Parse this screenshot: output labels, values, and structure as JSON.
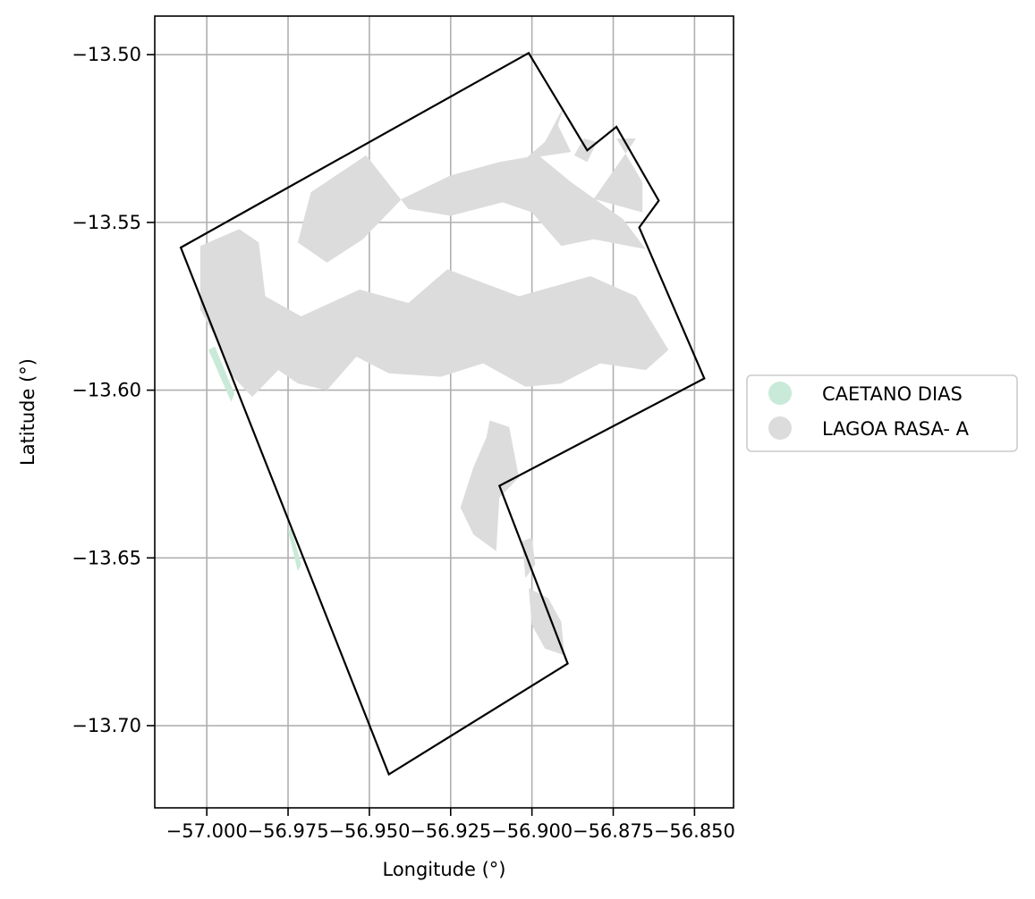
{
  "chart_data": {
    "type": "map",
    "xlabel": "Longitude (°)",
    "ylabel": "Latitude (°)",
    "xlim": [
      -57.016,
      -56.838
    ],
    "ylim": [
      -13.7245,
      -13.4885
    ],
    "grid": true,
    "x_ticks": [
      {
        "value": -57.0,
        "label": "−57.000"
      },
      {
        "value": -56.975,
        "label": "−56.975"
      },
      {
        "value": -56.95,
        "label": "−56.950"
      },
      {
        "value": -56.925,
        "label": "−56.925"
      },
      {
        "value": -56.9,
        "label": "−56.900"
      },
      {
        "value": -56.875,
        "label": "−56.875"
      },
      {
        "value": -56.85,
        "label": "−56.850"
      }
    ],
    "y_ticks": [
      {
        "value": -13.5,
        "label": "−13.50"
      },
      {
        "value": -13.55,
        "label": "−13.55"
      },
      {
        "value": -13.6,
        "label": "−13.60"
      },
      {
        "value": -13.65,
        "label": "−13.65"
      },
      {
        "value": -13.7,
        "label": "−13.70"
      }
    ],
    "boundary": [
      [
        -57.008,
        -13.5575
      ],
      [
        -56.901,
        -13.4995
      ],
      [
        -56.883,
        -13.5285
      ],
      [
        -56.874,
        -13.5215
      ],
      [
        -56.861,
        -13.5435
      ],
      [
        -56.867,
        -13.5515
      ],
      [
        -56.847,
        -13.5965
      ],
      [
        -56.91,
        -13.6285
      ],
      [
        -56.889,
        -13.6815
      ],
      [
        -56.944,
        -13.7145
      ],
      [
        -57.008,
        -13.5575
      ]
    ],
    "regions": [
      {
        "name": "LAGOA RASA- A",
        "color": "#dcdcdc",
        "polygons": [
          [
            [
              -57.002,
              -13.557
            ],
            [
              -56.99,
              -13.552
            ],
            [
              -56.984,
              -13.556
            ],
            [
              -56.982,
              -13.572
            ],
            [
              -56.971,
              -13.578
            ],
            [
              -56.953,
              -13.57
            ],
            [
              -56.938,
              -13.574
            ],
            [
              -56.926,
              -13.564
            ],
            [
              -56.904,
              -13.572
            ],
            [
              -56.882,
              -13.566
            ],
            [
              -56.868,
              -13.572
            ],
            [
              -56.858,
              -13.588
            ],
            [
              -56.865,
              -13.594
            ],
            [
              -56.879,
              -13.592
            ],
            [
              -56.891,
              -13.598
            ],
            [
              -56.902,
              -13.599
            ],
            [
              -56.915,
              -13.592
            ],
            [
              -56.928,
              -13.596
            ],
            [
              -56.944,
              -13.595
            ],
            [
              -56.954,
              -13.59
            ],
            [
              -56.963,
              -13.6
            ],
            [
              -56.972,
              -13.598
            ],
            [
              -56.978,
              -13.594
            ],
            [
              -56.986,
              -13.602
            ],
            [
              -56.993,
              -13.595
            ],
            [
              -56.997,
              -13.585
            ],
            [
              -57.002,
              -13.576
            ]
          ],
          [
            [
              -56.968,
              -13.541
            ],
            [
              -56.951,
              -13.53
            ],
            [
              -56.938,
              -13.546
            ],
            [
              -56.925,
              -13.548
            ],
            [
              -56.909,
              -13.544
            ],
            [
              -56.9,
              -13.547
            ],
            [
              -56.891,
              -13.557
            ],
            [
              -56.881,
              -13.555
            ],
            [
              -56.865,
              -13.558
            ],
            [
              -56.872,
              -13.549
            ],
            [
              -56.888,
              -13.538
            ],
            [
              -56.898,
              -13.53
            ],
            [
              -56.91,
              -13.532
            ],
            [
              -56.925,
              -13.536
            ],
            [
              -56.94,
              -13.543
            ],
            [
              -56.952,
              -13.555
            ],
            [
              -56.963,
              -13.562
            ],
            [
              -56.972,
              -13.556
            ]
          ],
          [
            [
              -56.881,
              -13.543
            ],
            [
              -56.868,
              -13.525
            ],
            [
              -56.874,
              -13.525
            ],
            [
              -56.866,
              -13.538
            ],
            [
              -56.866,
              -13.547
            ]
          ],
          [
            [
              -56.902,
              -13.531
            ],
            [
              -56.896,
              -13.526
            ],
            [
              -56.89,
              -13.515
            ],
            [
              -56.892,
              -13.521
            ],
            [
              -56.888,
              -13.529
            ]
          ],
          [
            [
              -56.887,
              -13.53
            ],
            [
              -56.884,
              -13.525
            ],
            [
              -56.88,
              -13.526
            ],
            [
              -56.883,
              -13.532
            ]
          ],
          [
            [
              -56.913,
              -13.609
            ],
            [
              -56.907,
              -13.611
            ],
            [
              -56.904,
              -13.626
            ],
            [
              -56.91,
              -13.632
            ],
            [
              -56.911,
              -13.648
            ],
            [
              -56.918,
              -13.643
            ],
            [
              -56.922,
              -13.635
            ],
            [
              -56.918,
              -13.623
            ],
            [
              -56.914,
              -13.614
            ]
          ],
          [
            [
              -56.901,
              -13.659
            ],
            [
              -56.895,
              -13.662
            ],
            [
              -56.891,
              -13.669
            ],
            [
              -56.89,
              -13.679
            ],
            [
              -56.896,
              -13.677
            ],
            [
              -56.9,
              -13.67
            ]
          ],
          [
            [
              -56.903,
              -13.645
            ],
            [
              -56.9,
              -13.644
            ],
            [
              -56.899,
              -13.652
            ],
            [
              -56.902,
              -13.656
            ]
          ]
        ]
      },
      {
        "name": "CAETANO DIAS",
        "color": "#c9ead8",
        "polygons": [
          [
            [
              -56.9995,
              -13.588
            ],
            [
              -56.9975,
              -13.587
            ],
            [
              -56.9915,
              -13.601
            ],
            [
              -56.9925,
              -13.6035
            ]
          ],
          [
            [
              -56.975,
              -13.642
            ],
            [
              -56.974,
              -13.641
            ],
            [
              -56.971,
              -13.652
            ],
            [
              -56.972,
              -13.654
            ]
          ]
        ]
      }
    ],
    "legend": {
      "placement": "right",
      "entries": [
        {
          "label": "CAETANO DIAS",
          "color": "#c9ead8"
        },
        {
          "label": "LAGOA RASA- A",
          "color": "#dcdcdc"
        }
      ]
    }
  }
}
